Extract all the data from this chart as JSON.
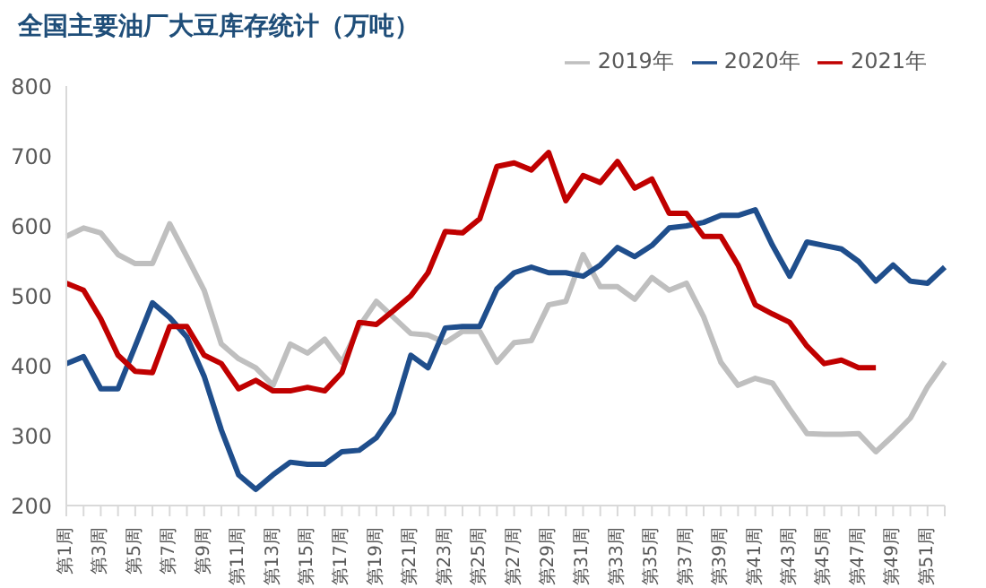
{
  "chart_data": {
    "type": "line",
    "title": "全国主要油厂大豆库存统计（万吨）",
    "categories": [
      "第1周",
      null,
      "第3周",
      null,
      "第5周",
      null,
      "第7周",
      null,
      "第9周",
      null,
      "第11周",
      null,
      "第13周",
      null,
      "第15周",
      null,
      "第17周",
      null,
      "第19周",
      null,
      "第21周",
      null,
      "第23周",
      null,
      "第25周",
      null,
      "第27周",
      null,
      "第29周",
      null,
      "第31周",
      null,
      "第33周",
      null,
      "第35周",
      null,
      "第37周",
      null,
      "第39周",
      null,
      "第41周",
      null,
      "第43周",
      null,
      "第45周",
      null,
      "第47周",
      null,
      "第49周",
      null,
      "第51周",
      null
    ],
    "series": [
      {
        "name": "2019年",
        "color": "#bfbfbf",
        "values": [
          585,
          597,
          590,
          559,
          546,
          546,
          603,
          556,
          508,
          431,
          410,
          397,
          372,
          431,
          418,
          438,
          405,
          456,
          492,
          469,
          446,
          444,
          433,
          449,
          449,
          405,
          433,
          436,
          487,
          492,
          559,
          513,
          513,
          495,
          526,
          508,
          518,
          470,
          405,
          372,
          382,
          375,
          338,
          303,
          302,
          302,
          303,
          277,
          300,
          325,
          370,
          405
        ]
      },
      {
        "name": "2020年",
        "color": "#1f4e8c",
        "values": [
          403,
          413,
          367,
          367,
          428,
          490,
          469,
          441,
          385,
          308,
          244,
          223,
          244,
          262,
          259,
          259,
          277,
          279,
          297,
          333,
          415,
          397,
          454,
          456,
          456,
          510,
          533,
          541,
          533,
          533,
          528,
          544,
          569,
          556,
          572,
          597,
          600,
          605,
          615,
          615,
          623,
          572,
          528,
          577,
          572,
          567,
          549,
          521,
          544,
          521,
          518,
          541
        ]
      },
      {
        "name": "2021年",
        "color": "#c00000",
        "values": [
          518,
          508,
          467,
          415,
          392,
          390,
          456,
          456,
          415,
          403,
          367,
          379,
          364,
          364,
          369,
          364,
          390,
          462,
          459,
          479,
          500,
          533,
          592,
          590,
          610,
          685,
          690,
          680,
          705,
          636,
          672,
          662,
          692,
          654,
          667,
          618,
          618,
          585,
          585,
          544,
          487,
          474,
          462,
          428,
          403,
          408,
          397,
          397,
          null,
          null,
          null,
          null
        ]
      }
    ],
    "ylim": [
      200,
      800
    ],
    "yticks": [
      200,
      300,
      400,
      500,
      600,
      700,
      800
    ],
    "legend": "top right",
    "marker": "none",
    "line_style": "solid"
  }
}
